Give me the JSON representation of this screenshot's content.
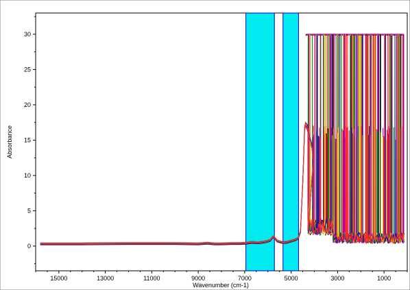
{
  "chart_data": {
    "type": "line",
    "title": "",
    "xlabel": "Wavenumber (cm-1)",
    "ylabel": "Absorbance",
    "x_reversed": true,
    "xlim": [
      16000,
      0
    ],
    "ylim": [
      -3.5,
      33
    ],
    "xticks": [
      15000,
      13000,
      11000,
      9000,
      7000,
      5000,
      3000,
      1000
    ],
    "yticks": [
      0,
      5,
      10,
      15,
      20,
      25,
      30
    ],
    "grid": false,
    "legend": "none",
    "highlight_regions": [
      {
        "from": 6950,
        "to": 5720,
        "color": "#00eaf0"
      },
      {
        "from": 5350,
        "to": 4680,
        "color": "#00eaf0"
      }
    ],
    "series_colors": [
      "#000000",
      "#c00000",
      "#d000a0",
      "#9000c0",
      "#008a00",
      "#e0c000",
      "#1a1aa0",
      "#ff2a2a"
    ],
    "spectrum": {
      "x": [
        15800,
        14000,
        12000,
        10000,
        9000,
        8600,
        8300,
        8000,
        7600,
        7200,
        6950,
        6700,
        6400,
        6100,
        5900,
        5800,
        5750,
        5700,
        5600,
        5400,
        5200,
        5000,
        4900,
        4800,
        4700,
        4600,
        4500,
        4420,
        4380,
        4300,
        4200,
        4100,
        4050
      ],
      "y": [
        0.3,
        0.3,
        0.35,
        0.35,
        0.3,
        0.4,
        0.3,
        0.3,
        0.35,
        0.35,
        0.4,
        0.5,
        0.45,
        0.6,
        0.8,
        1.2,
        1.3,
        1.1,
        0.7,
        0.5,
        0.5,
        0.7,
        0.8,
        0.9,
        1.1,
        2.0,
        9.0,
        16.5,
        17.2,
        16.8,
        15.2,
        14.0,
        12.0
      ]
    },
    "saturation_level": 30,
    "noisy_region": [
      4300,
      150
    ]
  }
}
